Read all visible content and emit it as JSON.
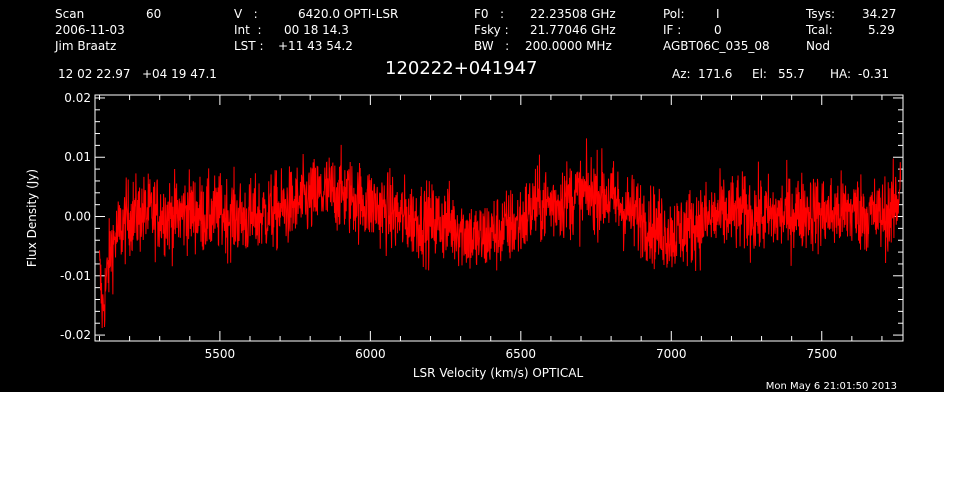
{
  "header": {
    "scan_label": "Scan",
    "scan_value": "60",
    "date": "2006-11-03",
    "observer": "Jim Braatz",
    "v_label": "V   :",
    "v_value": "6420.0 OPTI-LSR",
    "int_label": "Int  :",
    "int_value": "00 18 14.3",
    "lst_label": "LST :",
    "lst_value": "+11 43 54.2",
    "f0_label": "F0   :",
    "f0_value": "22.23508 GHz",
    "fsky_label": "Fsky :",
    "fsky_value": "21.77046 GHz",
    "bw_label": "BW   :",
    "bw_value": "200.0000 MHz",
    "pol_label": "Pol:",
    "pol_value": "I",
    "if_label": "IF :",
    "if_value": "0",
    "project": "AGBT06C_035_08",
    "tsys_label": "Tsys:",
    "tsys_value": "34.27",
    "tcal_label": "Tcal:",
    "tcal_value": "5.29",
    "mode": "Nod",
    "coords": "12 02 22.97   +04 19 47.1",
    "source": "120222+041947",
    "az_label": "Az:",
    "az_value": "171.6",
    "el_label": "El:",
    "el_value": "55.7",
    "ha_label": "HA:",
    "ha_value": "-0.31"
  },
  "footer": {
    "timestamp": "Mon May  6 21:01:50 2013"
  },
  "chart_data": {
    "type": "line",
    "xlabel": "LSR Velocity (km/s) OPTICAL",
    "ylabel": "Flux Density (Jy)",
    "xlim": [
      5085,
      7770
    ],
    "ylim": [
      -0.021,
      0.0205
    ],
    "xticks": [
      5500,
      6000,
      6500,
      7000,
      7500
    ],
    "xtick_labels": [
      "5500",
      "6000",
      "6500",
      "7000",
      "7500"
    ],
    "yticks": [
      -0.02,
      -0.01,
      0.0,
      0.01,
      0.02
    ],
    "ytick_labels": [
      "-0.02",
      "-0.01",
      "0.00",
      "0.01",
      "0.02"
    ],
    "series_color": "#ff0000",
    "background": "#000000",
    "grid": false,
    "series": [
      {
        "x": [
          5100,
          5110,
          5120,
          5140,
          5160,
          5200,
          5250,
          5300,
          5350,
          5400,
          5450,
          5500,
          5550,
          5600,
          5650,
          5700,
          5750,
          5800,
          5850,
          5900,
          5950,
          6000,
          6050,
          6100,
          6150,
          6200,
          6250,
          6300,
          6350,
          6400,
          6450,
          6500,
          6550,
          6600,
          6650,
          6700,
          6750,
          6800,
          6850,
          6900,
          6950,
          7000,
          7050,
          7100,
          7150,
          7200,
          7250,
          7300,
          7350,
          7400,
          7450,
          7500,
          7550,
          7600,
          7650,
          7700,
          7740,
          7755,
          7762
        ],
        "y": [
          -0.009,
          -0.016,
          -0.012,
          -0.005,
          -0.003,
          0.0,
          0.0005,
          0.0005,
          0.0,
          0.001,
          0.0,
          0.0005,
          0.0,
          -0.0005,
          0.0005,
          0.001,
          0.002,
          0.003,
          0.004,
          0.004,
          0.003,
          0.002,
          0.001,
          0.0,
          -0.0005,
          -0.001,
          -0.001,
          -0.002,
          -0.004,
          -0.003,
          -0.002,
          -0.001,
          0.002,
          0.002,
          0.003,
          0.0035,
          0.004,
          0.003,
          0.001,
          0.0,
          -0.002,
          -0.003,
          -0.002,
          -0.001,
          0.0,
          0.0005,
          0.0005,
          0.0,
          0.0,
          0.0005,
          0.001,
          0.0005,
          0.0005,
          0.001,
          0.0005,
          0.0,
          0.001,
          0.003,
          0.009
        ]
      }
    ]
  }
}
